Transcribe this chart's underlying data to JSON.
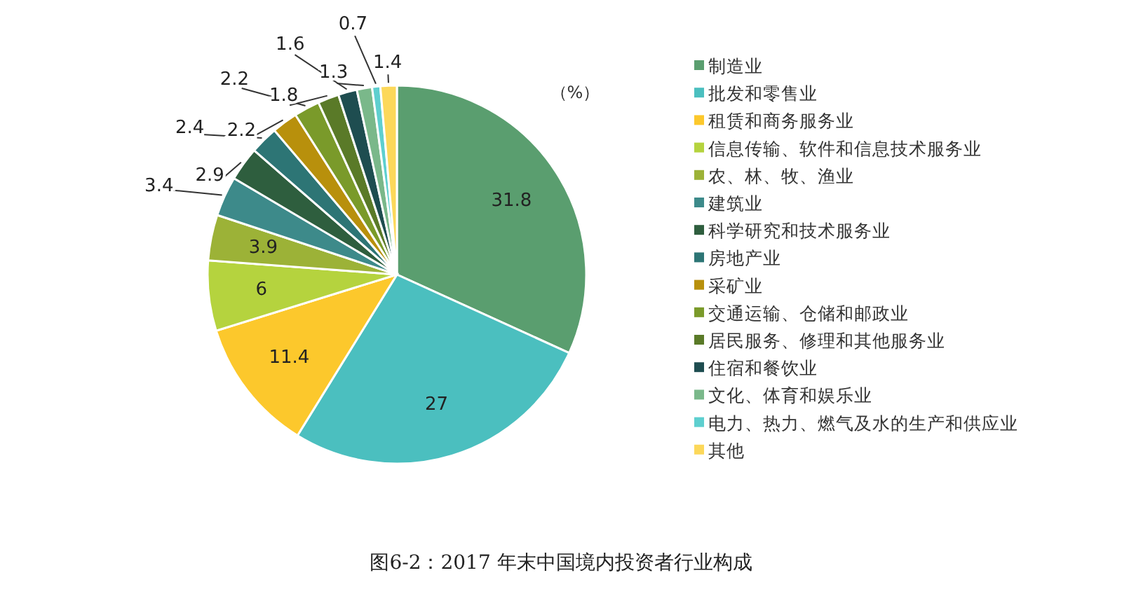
{
  "chart_data": {
    "type": "pie",
    "title": "图6-2：2017 年末中国境内投资者行业构成",
    "annotations": [
      "（%）"
    ],
    "categories": [
      "制造业",
      "批发和零售业",
      "租赁和商务服务业",
      "信息传输、软件和信息技术服务业",
      "农、林、牧、渔业",
      "建筑业",
      "科学研究和技术服务业",
      "房地产业",
      "采矿业",
      "交通运输、仓储和邮政业",
      "居民服务、修理和其他服务业",
      "住宿和餐饮业",
      "文化、体育和娱乐业",
      "电力、热力、燃气及水的生产和供应业",
      "其他"
    ],
    "values": [
      31.8,
      27,
      11.4,
      6,
      3.9,
      3.4,
      2.9,
      2.4,
      2.2,
      2.2,
      1.8,
      1.6,
      1.3,
      0.7,
      1.4
    ],
    "colors": [
      "#5a9e6f",
      "#4bbfbf",
      "#fcc82c",
      "#b5d33e",
      "#9cb237",
      "#3d8a8a",
      "#2e5e3e",
      "#2d7575",
      "#b8900c",
      "#7a9a2a",
      "#5a7a28",
      "#1e4d50",
      "#7ab88a",
      "#5ecfcf",
      "#fcd85a"
    ],
    "data_labels": true,
    "legend": "right"
  }
}
